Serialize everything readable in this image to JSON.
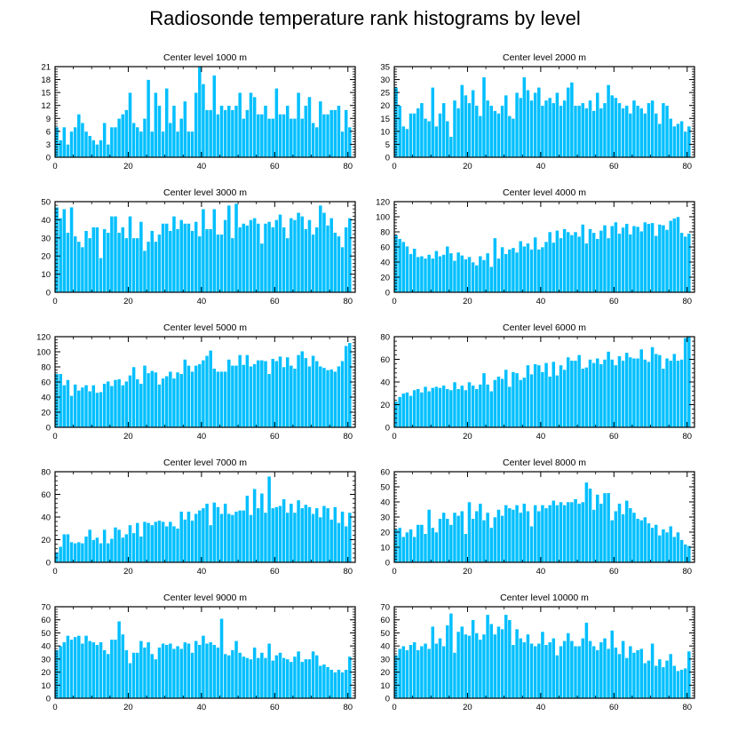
{
  "figure": {
    "title": "Radiosonde temperature rank histograms by level"
  },
  "colors": {
    "bar_fill": "#00bfff",
    "bar_edge": "#ffffff",
    "axis": "#000000",
    "background": "#ffffff"
  },
  "chart_data": [
    {
      "type": "bar",
      "title": "Center level 1000 m",
      "xlabel": "",
      "ylabel": "",
      "xlim": [
        0,
        82
      ],
      "ylim": [
        0,
        21
      ],
      "xticks": [
        0,
        20,
        40,
        60,
        80
      ],
      "yticks": [
        0,
        3,
        6,
        9,
        12,
        15,
        18,
        21
      ],
      "values": [
        7,
        4,
        7,
        3,
        6,
        7,
        10,
        8,
        6,
        5,
        4,
        3,
        4,
        8,
        3,
        7,
        7,
        9,
        10,
        11,
        15,
        8,
        7,
        6,
        9,
        18,
        6,
        15,
        12,
        6,
        16,
        8,
        12,
        6,
        9,
        13,
        6,
        6,
        15,
        21,
        17,
        11,
        11,
        19,
        10,
        12,
        11,
        12,
        11,
        12,
        15,
        9,
        11,
        15,
        14,
        10,
        10,
        12,
        9,
        9,
        16,
        10,
        10,
        12,
        9,
        9,
        15,
        9,
        12,
        14,
        8,
        7,
        13,
        10,
        10,
        11,
        11,
        12,
        6,
        11,
        7
      ]
    },
    {
      "type": "bar",
      "title": "Center level 2000 m",
      "xlabel": "",
      "ylabel": "",
      "xlim": [
        0,
        82
      ],
      "ylim": [
        0,
        35
      ],
      "xticks": [
        0,
        20,
        40,
        60,
        80
      ],
      "yticks": [
        0,
        5,
        10,
        15,
        20,
        25,
        30,
        35
      ],
      "values": [
        27,
        20,
        12,
        11,
        17,
        17,
        19,
        21,
        15,
        14,
        27,
        12,
        17,
        21,
        14,
        8,
        22,
        19,
        28,
        24,
        21,
        26,
        20,
        16,
        31,
        22,
        20,
        18,
        17,
        20,
        24,
        16,
        15,
        25,
        23,
        31,
        26,
        22,
        25,
        27,
        20,
        22,
        23,
        21,
        25,
        20,
        22,
        27,
        29,
        20,
        20,
        21,
        19,
        22,
        18,
        25,
        19,
        21,
        28,
        24,
        23,
        21,
        19,
        20,
        17,
        22,
        20,
        19,
        17,
        21,
        22,
        17,
        13,
        21,
        20,
        15,
        12,
        13,
        14,
        10,
        12
      ]
    },
    {
      "type": "bar",
      "title": "Center level 3000 m",
      "xlabel": "",
      "ylabel": "",
      "xlim": [
        0,
        82
      ],
      "ylim": [
        0,
        50
      ],
      "xticks": [
        0,
        20,
        40,
        60,
        80
      ],
      "yticks": [
        0,
        10,
        20,
        30,
        40,
        50
      ],
      "values": [
        47,
        41,
        46,
        33,
        47,
        31,
        28,
        25,
        34,
        30,
        36,
        36,
        19,
        35,
        33,
        42,
        42,
        33,
        36,
        30,
        42,
        30,
        30,
        39,
        23,
        28,
        34,
        28,
        32,
        38,
        38,
        34,
        42,
        35,
        40,
        38,
        38,
        34,
        39,
        31,
        46,
        35,
        35,
        46,
        32,
        32,
        40,
        48,
        30,
        49,
        36,
        38,
        37,
        40,
        41,
        38,
        27,
        38,
        39,
        36,
        40,
        43,
        36,
        30,
        41,
        40,
        44,
        42,
        35,
        40,
        32,
        36,
        48,
        44,
        37,
        41,
        33,
        31,
        25,
        36,
        41
      ]
    },
    {
      "type": "bar",
      "title": "Center level 4000 m",
      "xlabel": "",
      "ylabel": "",
      "xlim": [
        0,
        82
      ],
      "ylim": [
        0,
        120
      ],
      "xticks": [
        0,
        20,
        40,
        60,
        80
      ],
      "yticks": [
        0,
        20,
        40,
        60,
        80,
        100,
        120
      ],
      "values": [
        76,
        71,
        67,
        61,
        51,
        58,
        47,
        48,
        45,
        50,
        45,
        55,
        48,
        50,
        61,
        52,
        42,
        53,
        49,
        44,
        47,
        40,
        36,
        48,
        43,
        52,
        34,
        72,
        45,
        60,
        51,
        57,
        59,
        53,
        68,
        61,
        65,
        57,
        73,
        57,
        60,
        67,
        80,
        66,
        82,
        72,
        84,
        80,
        76,
        80,
        74,
        90,
        65,
        84,
        79,
        71,
        82,
        89,
        72,
        88,
        93,
        78,
        86,
        91,
        77,
        88,
        87,
        81,
        93,
        91,
        92,
        75,
        90,
        89,
        83,
        95,
        98,
        100,
        79,
        74,
        78
      ]
    },
    {
      "type": "bar",
      "title": "Center level 5000 m",
      "xlabel": "",
      "ylabel": "",
      "xlim": [
        0,
        82
      ],
      "ylim": [
        0,
        120
      ],
      "xticks": [
        0,
        20,
        40,
        60,
        80
      ],
      "yticks": [
        0,
        20,
        40,
        60,
        80,
        100,
        120
      ],
      "values": [
        71,
        71,
        56,
        63,
        42,
        57,
        49,
        53,
        56,
        48,
        56,
        46,
        47,
        58,
        61,
        55,
        63,
        64,
        56,
        61,
        69,
        80,
        64,
        58,
        82,
        72,
        75,
        73,
        57,
        65,
        68,
        74,
        65,
        73,
        71,
        90,
        82,
        74,
        82,
        84,
        89,
        95,
        102,
        78,
        74,
        74,
        74,
        90,
        82,
        82,
        96,
        83,
        96,
        81,
        84,
        89,
        89,
        88,
        71,
        91,
        88,
        94,
        80,
        93,
        82,
        78,
        96,
        101,
        92,
        81,
        95,
        88,
        81,
        79,
        76,
        77,
        74,
        81,
        88,
        108,
        112
      ]
    },
    {
      "type": "bar",
      "title": "Center level 6000 m",
      "xlabel": "",
      "ylabel": "",
      "xlim": [
        0,
        82
      ],
      "ylim": [
        0,
        80
      ],
      "xticks": [
        0,
        20,
        40,
        60,
        80
      ],
      "yticks": [
        0,
        20,
        40,
        60,
        80
      ],
      "values": [
        23,
        27,
        30,
        31,
        28,
        33,
        34,
        31,
        36,
        32,
        35,
        36,
        35,
        37,
        34,
        33,
        40,
        34,
        37,
        33,
        40,
        37,
        34,
        38,
        48,
        38,
        32,
        42,
        45,
        43,
        51,
        36,
        49,
        48,
        42,
        44,
        55,
        47,
        56,
        55,
        49,
        57,
        45,
        58,
        46,
        55,
        51,
        62,
        59,
        59,
        64,
        52,
        53,
        60,
        57,
        61,
        56,
        60,
        67,
        60,
        55,
        63,
        59,
        66,
        62,
        61,
        61,
        69,
        60,
        58,
        71,
        65,
        64,
        52,
        61,
        59,
        65,
        59,
        60,
        79,
        80
      ]
    },
    {
      "type": "bar",
      "title": "Center level 7000 m",
      "xlabel": "",
      "ylabel": "",
      "xlim": [
        0,
        82
      ],
      "ylim": [
        0,
        80
      ],
      "xticks": [
        0,
        20,
        40,
        60,
        80
      ],
      "yticks": [
        0,
        20,
        40,
        60,
        80
      ],
      "values": [
        9,
        14,
        25,
        25,
        18,
        17,
        18,
        17,
        23,
        29,
        20,
        22,
        17,
        29,
        17,
        21,
        31,
        29,
        22,
        25,
        33,
        26,
        35,
        23,
        36,
        35,
        33,
        36,
        37,
        36,
        32,
        36,
        32,
        30,
        45,
        38,
        45,
        37,
        43,
        46,
        48,
        52,
        33,
        53,
        49,
        43,
        52,
        43,
        42,
        45,
        46,
        46,
        59,
        42,
        65,
        48,
        61,
        44,
        76,
        48,
        49,
        50,
        56,
        44,
        52,
        44,
        55,
        48,
        51,
        49,
        43,
        48,
        40,
        50,
        48,
        38,
        49,
        35,
        45,
        32,
        44
      ]
    },
    {
      "type": "bar",
      "title": "Center level 8000 m",
      "xlabel": "",
      "ylabel": "",
      "xlim": [
        0,
        82
      ],
      "ylim": [
        0,
        60
      ],
      "xticks": [
        0,
        20,
        40,
        60,
        80
      ],
      "yticks": [
        0,
        10,
        20,
        30,
        40,
        50,
        60
      ],
      "values": [
        22,
        23,
        17,
        20,
        22,
        17,
        25,
        25,
        19,
        35,
        23,
        20,
        29,
        33,
        29,
        25,
        33,
        31,
        34,
        19,
        40,
        29,
        34,
        39,
        28,
        33,
        23,
        30,
        35,
        31,
        38,
        36,
        35,
        38,
        33,
        39,
        34,
        24,
        38,
        34,
        38,
        36,
        38,
        41,
        38,
        40,
        38,
        40,
        40,
        42,
        39,
        40,
        53,
        49,
        35,
        45,
        39,
        46,
        46,
        28,
        34,
        39,
        32,
        41,
        36,
        33,
        29,
        28,
        30,
        26,
        23,
        25,
        18,
        22,
        20,
        24,
        17,
        20,
        15,
        12,
        11
      ]
    },
    {
      "type": "bar",
      "title": "Center level 9000 m",
      "xlabel": "",
      "ylabel": "",
      "xlim": [
        0,
        82
      ],
      "ylim": [
        0,
        70
      ],
      "xticks": [
        0,
        20,
        40,
        60,
        80
      ],
      "yticks": [
        0,
        10,
        20,
        30,
        40,
        50,
        60,
        70
      ],
      "values": [
        37,
        40,
        43,
        48,
        45,
        47,
        48,
        42,
        48,
        44,
        43,
        41,
        43,
        37,
        34,
        45,
        45,
        59,
        49,
        37,
        27,
        35,
        35,
        44,
        39,
        43,
        34,
        30,
        39,
        42,
        41,
        42,
        38,
        40,
        38,
        43,
        42,
        35,
        44,
        41,
        48,
        42,
        43,
        41,
        39,
        61,
        34,
        33,
        37,
        44,
        35,
        32,
        31,
        30,
        39,
        31,
        35,
        31,
        42,
        29,
        33,
        35,
        31,
        30,
        28,
        32,
        36,
        28,
        30,
        30,
        36,
        33,
        25,
        26,
        24,
        22,
        20,
        22,
        20,
        22,
        32
      ]
    },
    {
      "type": "bar",
      "title": "Center level 10000 m",
      "xlabel": "",
      "ylabel": "",
      "xlim": [
        0,
        82
      ],
      "ylim": [
        0,
        70
      ],
      "xticks": [
        0,
        20,
        40,
        60,
        80
      ],
      "yticks": [
        0,
        10,
        20,
        30,
        40,
        50,
        60,
        70
      ],
      "values": [
        33,
        38,
        40,
        37,
        41,
        43,
        37,
        40,
        42,
        38,
        55,
        42,
        46,
        40,
        56,
        65,
        35,
        51,
        55,
        49,
        48,
        60,
        50,
        45,
        49,
        64,
        57,
        49,
        55,
        53,
        64,
        60,
        41,
        53,
        46,
        43,
        49,
        42,
        40,
        42,
        51,
        41,
        43,
        46,
        33,
        40,
        44,
        50,
        44,
        40,
        40,
        46,
        58,
        44,
        40,
        37,
        43,
        46,
        38,
        52,
        39,
        34,
        44,
        31,
        40,
        35,
        37,
        38,
        27,
        29,
        42,
        25,
        30,
        24,
        29,
        34,
        25,
        21,
        22,
        23,
        36
      ]
    }
  ]
}
